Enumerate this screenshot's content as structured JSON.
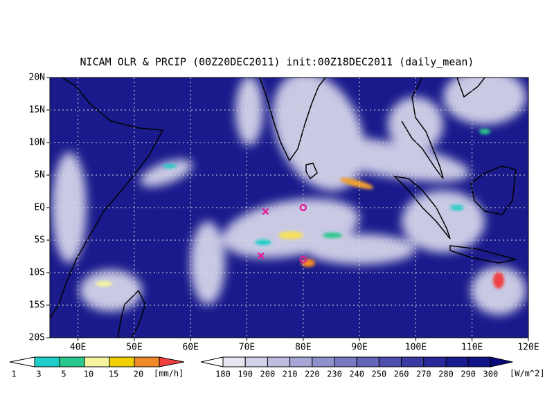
{
  "title": "NICAM OLR & PRCIP (00Z20DEC2011) init:00Z18DEC2011 (daily_mean)",
  "map": {
    "xlim": [
      35,
      120
    ],
    "ylim": [
      -20,
      20
    ],
    "xticks": [
      {
        "value": 40,
        "label": "40E"
      },
      {
        "value": 50,
        "label": "50E"
      },
      {
        "value": 60,
        "label": "60E"
      },
      {
        "value": 70,
        "label": "70E"
      },
      {
        "value": 80,
        "label": "80E"
      },
      {
        "value": 90,
        "label": "90E"
      },
      {
        "value": 100,
        "label": "100E"
      },
      {
        "value": 110,
        "label": "110E"
      },
      {
        "value": 120,
        "label": "120E"
      }
    ],
    "yticks": [
      {
        "value": 20,
        "label": "20N"
      },
      {
        "value": 15,
        "label": "15N"
      },
      {
        "value": 10,
        "label": "10N"
      },
      {
        "value": 5,
        "label": "5N"
      },
      {
        "value": 0,
        "label": "EQ"
      },
      {
        "value": -5,
        "label": "5S"
      },
      {
        "value": -10,
        "label": "10S"
      },
      {
        "value": -15,
        "label": "15S"
      },
      {
        "value": -20,
        "label": "20S"
      }
    ],
    "grid": true,
    "markers": [
      {
        "shape": "x",
        "lon": 73.3,
        "lat": -0.6,
        "color": "#e0209a"
      },
      {
        "shape": "o",
        "lon": 80,
        "lat": 0,
        "color": "#e0209a"
      },
      {
        "shape": "x",
        "lon": 72.5,
        "lat": -7.4,
        "color": "#e0209a"
      },
      {
        "shape": "o",
        "lon": 80,
        "lat": -8,
        "color": "#e0209a"
      }
    ]
  },
  "precip_colorbar": {
    "labels": [
      1,
      3,
      5,
      10,
      15,
      20
    ],
    "unit": "[mm/h]",
    "colors": [
      "#ffffff",
      "#1ecdc8",
      "#2ac88c",
      "#f5f5a0",
      "#f0d000",
      "#f08a28",
      "#f04040"
    ]
  },
  "olr_colorbar": {
    "labels": [
      180,
      190,
      200,
      210,
      220,
      230,
      240,
      250,
      260,
      270,
      280,
      290,
      300
    ],
    "unit": "[W/m^2]",
    "colors": [
      "#ffffff",
      "#e6e6f2",
      "#d2d2ea",
      "#bcbce0",
      "#a6a6d6",
      "#9090cc",
      "#7a7ac2",
      "#6464b8",
      "#4e4eae",
      "#3a3aa4",
      "#28289a",
      "#1a1a90",
      "#121288",
      "#0a0a80"
    ]
  }
}
